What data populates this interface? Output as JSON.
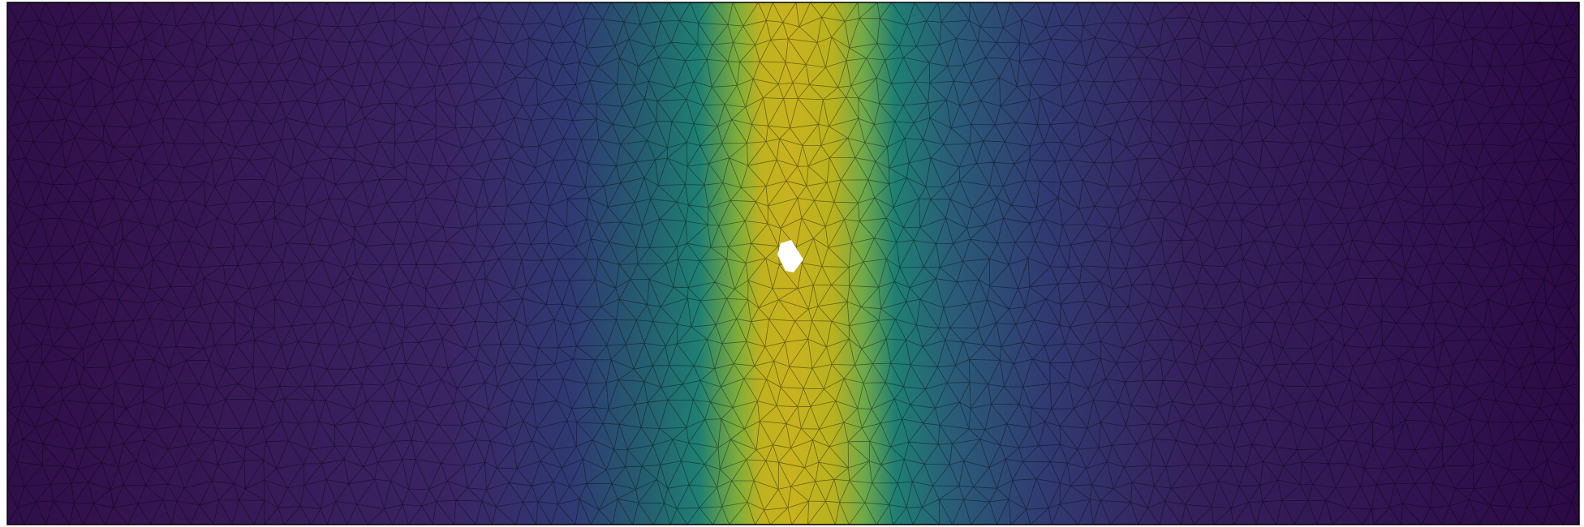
{
  "figure": {
    "kind": "triangular-mesh-field",
    "colormap": "viridis",
    "colors": {
      "low": "#2f0f49",
      "mid_low": "#2f3a73",
      "mid": "#1f7f73",
      "mid_high": "#7fae3a",
      "high": "#c8b21f",
      "hole": "#ffffff",
      "mesh_edge": "#000000",
      "border": "#000000"
    },
    "field": {
      "band_center_fraction": 0.5,
      "band_width_fraction": 0.11,
      "peak_value": 1.0,
      "background_value": 0.0
    },
    "mesh": {
      "element_type": "triangle",
      "grid_columns": 78,
      "grid_rows": 26,
      "has_hole": true
    }
  }
}
